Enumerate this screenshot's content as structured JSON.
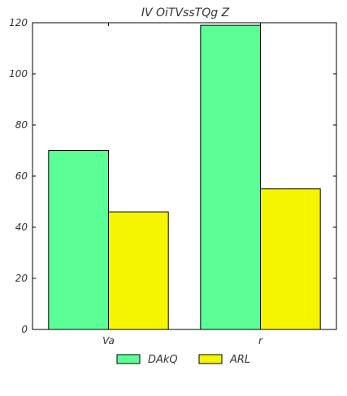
{
  "chart_data": {
    "type": "bar",
    "title": "IV OiTVssTQg Z",
    "xlabel": "",
    "ylabel": "",
    "categories": [
      "Va",
      "r"
    ],
    "series": [
      {
        "name": "DAkQ",
        "values": [
          70,
          119
        ],
        "color": "#5cff96"
      },
      {
        "name": "ARL",
        "values": [
          46,
          55
        ],
        "color": "#f5f500"
      }
    ],
    "ylim": [
      0,
      120
    ],
    "yticks": [
      0,
      20,
      40,
      60,
      80,
      100,
      120
    ],
    "grid": false,
    "legend_position": "bottom-center"
  }
}
